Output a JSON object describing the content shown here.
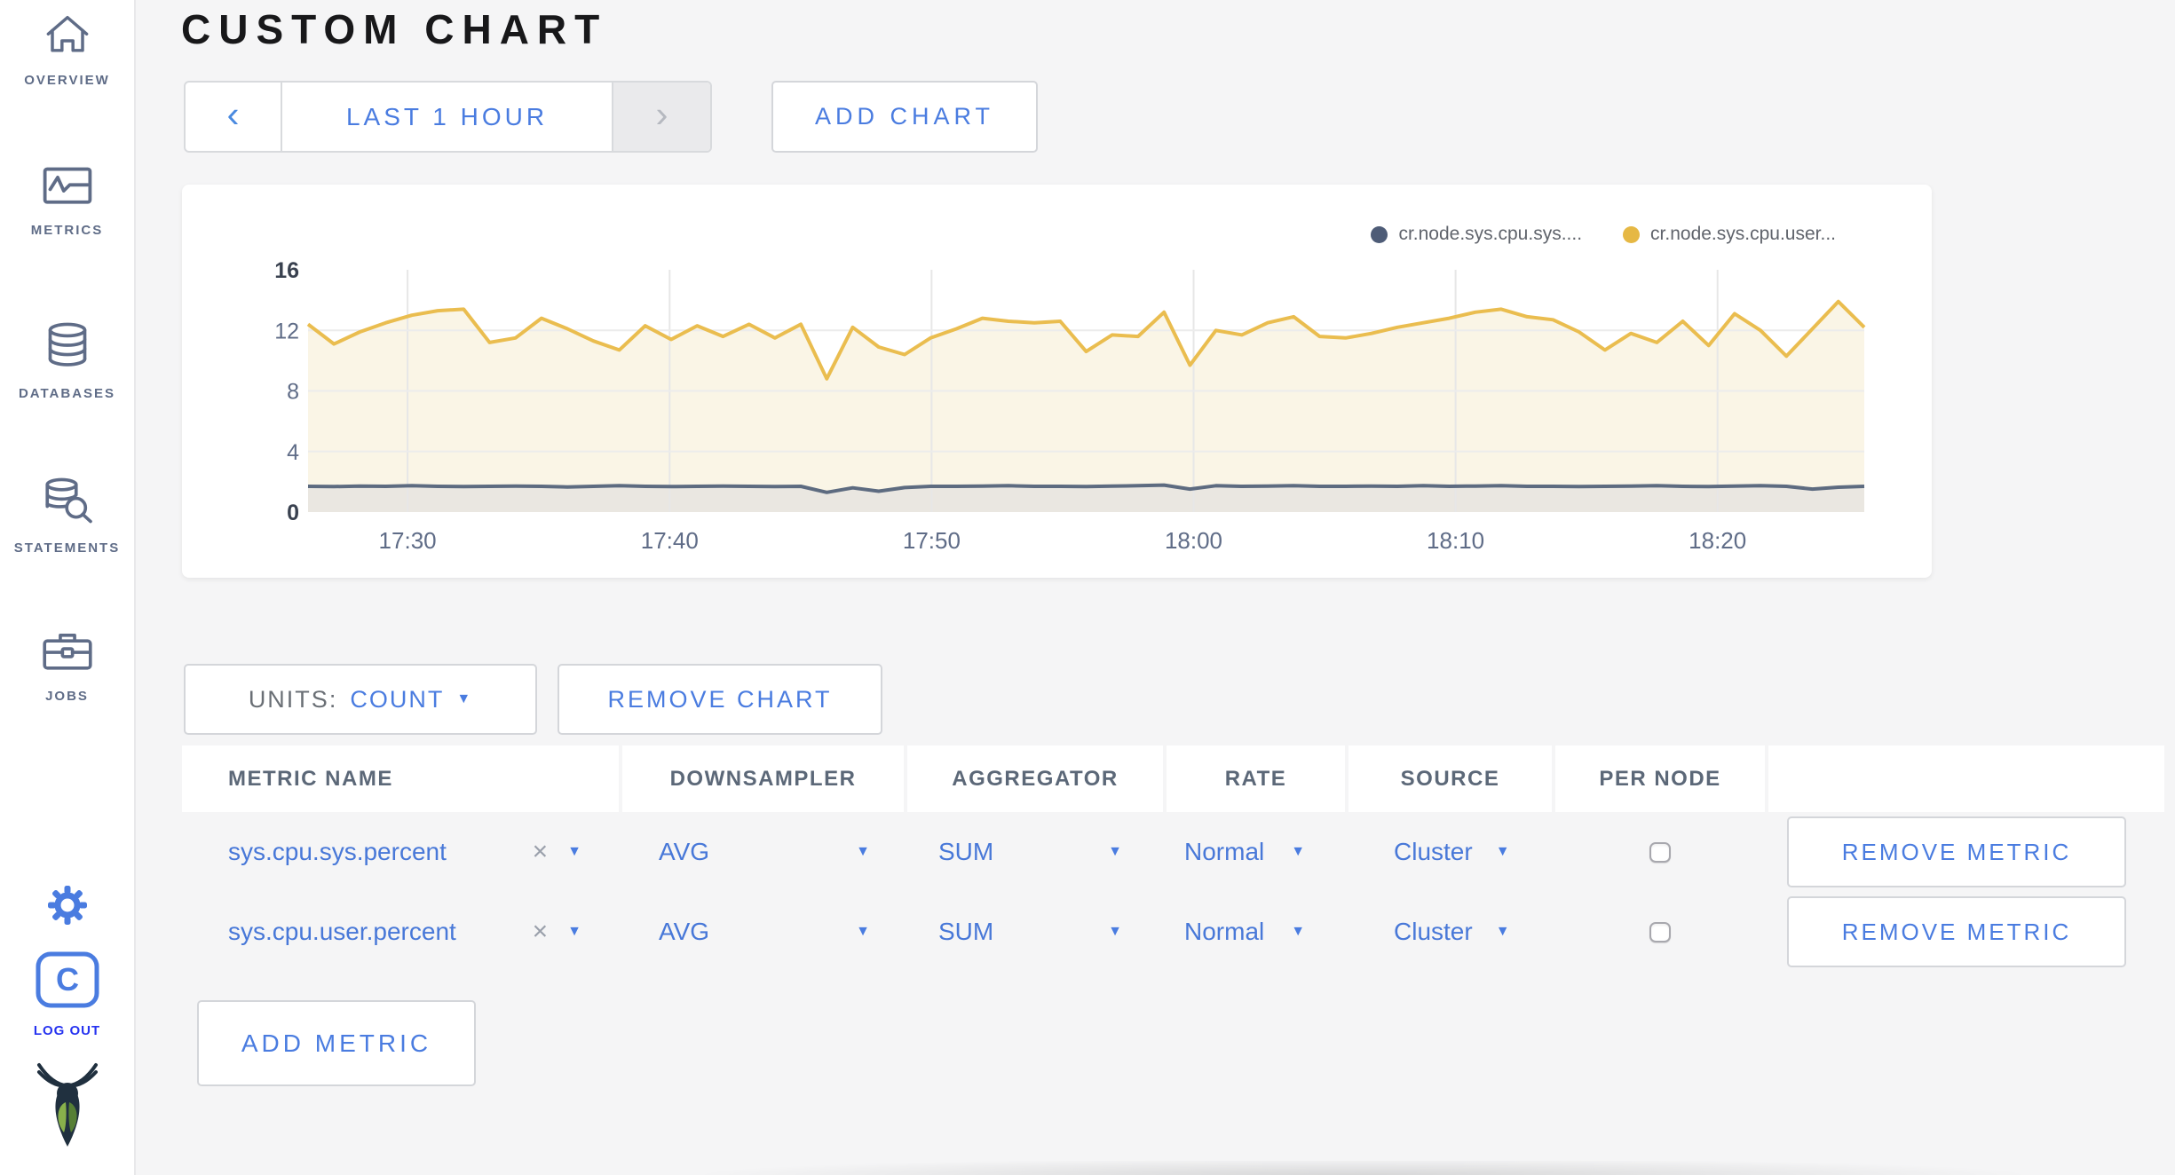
{
  "colors": {
    "accent_blue": "#4878d8",
    "slate": "#5f6c87",
    "logout_blue": "#2633f0",
    "title": "#18181a",
    "series_yellow": "#eabd4f",
    "series_gray": "#5d6b80",
    "page_bg": "#f5f5f6"
  },
  "sidebar": {
    "items": [
      {
        "label": "OVERVIEW",
        "icon": "home-icon"
      },
      {
        "label": "METRICS",
        "icon": "metrics-icon"
      },
      {
        "label": "DATABASES",
        "icon": "database-icon"
      },
      {
        "label": "STATEMENTS",
        "icon": "statements-icon"
      },
      {
        "label": "JOBS",
        "icon": "jobs-icon"
      }
    ],
    "logout_label": "LOG OUT"
  },
  "header": {
    "title": "CUSTOM CHART"
  },
  "toolbar": {
    "time_range_label": "LAST 1 HOUR",
    "prev_arrow": "‹",
    "next_arrow": "›",
    "add_chart_label": "ADD CHART"
  },
  "chart_controls": {
    "units_label": "UNITS:",
    "units_value": "COUNT",
    "remove_chart_label": "REMOVE CHART"
  },
  "chart_data": {
    "type": "area",
    "title": "",
    "xlabel": "",
    "ylabel": "",
    "ylim": [
      0,
      16
    ],
    "y_ticks": [
      0,
      4,
      8,
      12,
      16
    ],
    "grid": true,
    "legend_position": "top-right",
    "x_domain_minutes": [
      0,
      59.4
    ],
    "x_ticks": [
      {
        "label": "17:30",
        "min": 3.8
      },
      {
        "label": "17:40",
        "min": 13.8
      },
      {
        "label": "17:50",
        "min": 23.8
      },
      {
        "label": "18:00",
        "min": 33.8
      },
      {
        "label": "18:10",
        "min": 43.8
      },
      {
        "label": "18:20",
        "min": 53.8
      }
    ],
    "series": [
      {
        "name": "cr.node.sys.cpu.sys....",
        "color": "#5d6b80",
        "fill": "#eae7e1",
        "dot": "#4e5c77",
        "values": [
          1.7,
          1.68,
          1.72,
          1.7,
          1.74,
          1.7,
          1.68,
          1.7,
          1.72,
          1.7,
          1.66,
          1.7,
          1.74,
          1.7,
          1.68,
          1.7,
          1.72,
          1.7,
          1.68,
          1.7,
          1.3,
          1.6,
          1.38,
          1.62,
          1.7,
          1.7,
          1.72,
          1.74,
          1.7,
          1.7,
          1.68,
          1.72,
          1.74,
          1.78,
          1.52,
          1.74,
          1.7,
          1.72,
          1.74,
          1.7,
          1.7,
          1.72,
          1.7,
          1.74,
          1.7,
          1.72,
          1.74,
          1.7,
          1.7,
          1.68,
          1.7,
          1.72,
          1.74,
          1.7,
          1.68,
          1.72,
          1.74,
          1.7,
          1.52,
          1.64,
          1.7
        ]
      },
      {
        "name": "cr.node.sys.cpu.user...",
        "color": "#eabd4f",
        "fill": "#faf5e6",
        "dot": "#e6b844",
        "values": [
          12.4,
          11.1,
          11.9,
          12.5,
          13.0,
          13.3,
          13.4,
          11.2,
          11.5,
          12.8,
          12.1,
          11.3,
          10.7,
          12.3,
          11.4,
          12.3,
          11.6,
          12.4,
          11.5,
          12.4,
          8.8,
          12.2,
          10.9,
          10.4,
          11.5,
          12.1,
          12.8,
          12.6,
          12.5,
          12.6,
          10.6,
          11.7,
          11.6,
          13.2,
          9.7,
          12.0,
          11.7,
          12.5,
          12.9,
          11.6,
          11.5,
          11.8,
          12.2,
          12.5,
          12.8,
          13.2,
          13.4,
          12.9,
          12.7,
          11.9,
          10.7,
          11.8,
          11.2,
          12.6,
          11.0,
          13.1,
          12.0,
          10.3,
          12.1,
          13.9,
          12.2
        ]
      }
    ]
  },
  "table": {
    "headers": [
      "METRIC NAME",
      "DOWNSAMPLER",
      "AGGREGATOR",
      "RATE",
      "SOURCE",
      "PER NODE",
      ""
    ],
    "rows": [
      {
        "metric": "sys.cpu.sys.percent",
        "remove_glyph": "×",
        "downsampler": "AVG",
        "aggregator": "SUM",
        "rate": "Normal",
        "source": "Cluster",
        "per_node_checked": false,
        "remove_label": "REMOVE METRIC"
      },
      {
        "metric": "sys.cpu.user.percent",
        "remove_glyph": "×",
        "downsampler": "AVG",
        "aggregator": "SUM",
        "rate": "Normal",
        "source": "Cluster",
        "per_node_checked": false,
        "remove_label": "REMOVE METRIC"
      }
    ],
    "add_metric_label": "ADD METRIC",
    "dropdown_arrow": "▼"
  }
}
